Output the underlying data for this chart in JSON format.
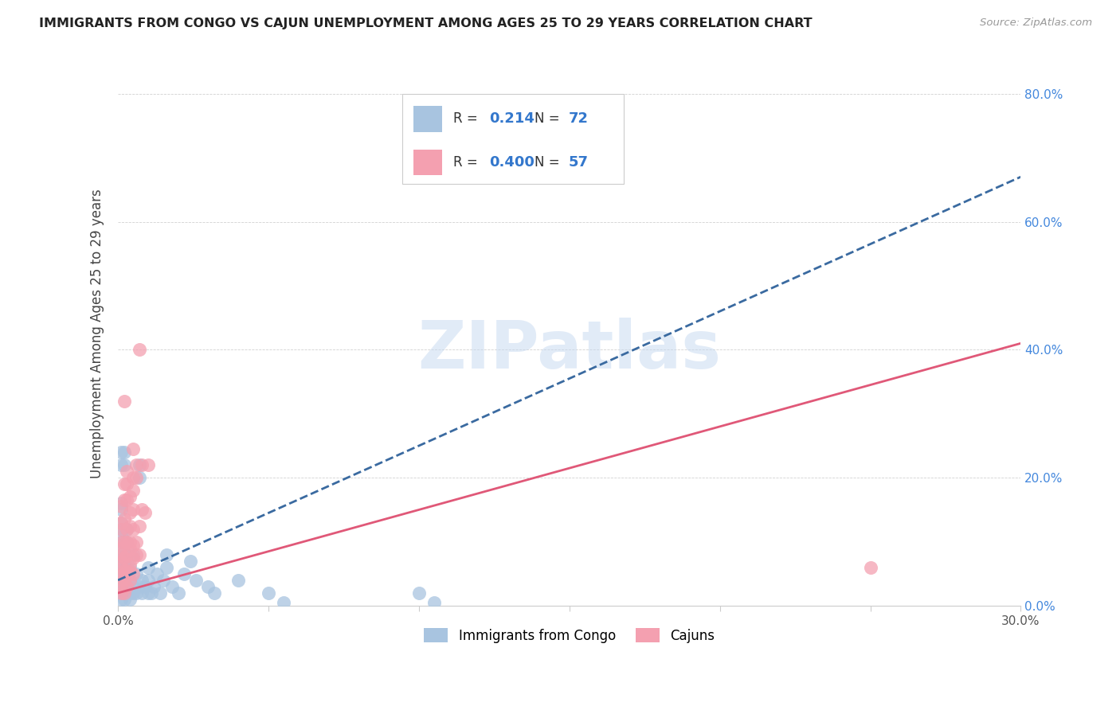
{
  "title": "IMMIGRANTS FROM CONGO VS CAJUN UNEMPLOYMENT AMONG AGES 25 TO 29 YEARS CORRELATION CHART",
  "source": "Source: ZipAtlas.com",
  "ylabel": "Unemployment Among Ages 25 to 29 years",
  "xlim": [
    0.0,
    0.3
  ],
  "ylim": [
    0.0,
    0.85
  ],
  "xticks": [
    0.0,
    0.05,
    0.1,
    0.15,
    0.2,
    0.25,
    0.3
  ],
  "xtick_labels": [
    "0.0%",
    "",
    "",
    "",
    "",
    "",
    "30.0%"
  ],
  "ytick_labels": [
    "0.0%",
    "20.0%",
    "40.0%",
    "60.0%",
    "80.0%"
  ],
  "yticks": [
    0.0,
    0.2,
    0.4,
    0.6,
    0.8
  ],
  "R_congo": 0.214,
  "N_congo": 72,
  "R_cajun": 0.4,
  "N_cajun": 57,
  "color_congo": "#a8c4e0",
  "color_cajun": "#f4a0b0",
  "trendline_congo_color": "#3a6aa0",
  "trendline_cajun_color": "#e05878",
  "watermark": "ZIPatlas",
  "background_color": "#ffffff",
  "congo_points": [
    [
      0.001,
      0.01
    ],
    [
      0.001,
      0.02
    ],
    [
      0.001,
      0.03
    ],
    [
      0.001,
      0.04
    ],
    [
      0.001,
      0.05
    ],
    [
      0.001,
      0.06
    ],
    [
      0.001,
      0.07
    ],
    [
      0.001,
      0.08
    ],
    [
      0.001,
      0.09
    ],
    [
      0.001,
      0.1
    ],
    [
      0.001,
      0.11
    ],
    [
      0.001,
      0.12
    ],
    [
      0.001,
      0.13
    ],
    [
      0.001,
      0.15
    ],
    [
      0.001,
      0.16
    ],
    [
      0.001,
      0.22
    ],
    [
      0.001,
      0.24
    ],
    [
      0.002,
      0.01
    ],
    [
      0.002,
      0.02
    ],
    [
      0.002,
      0.03
    ],
    [
      0.002,
      0.04
    ],
    [
      0.002,
      0.05
    ],
    [
      0.002,
      0.06
    ],
    [
      0.002,
      0.07
    ],
    [
      0.002,
      0.08
    ],
    [
      0.002,
      0.1
    ],
    [
      0.002,
      0.22
    ],
    [
      0.002,
      0.24
    ],
    [
      0.003,
      0.02
    ],
    [
      0.003,
      0.03
    ],
    [
      0.003,
      0.05
    ],
    [
      0.003,
      0.06
    ],
    [
      0.003,
      0.08
    ],
    [
      0.003,
      0.1
    ],
    [
      0.003,
      0.12
    ],
    [
      0.004,
      0.01
    ],
    [
      0.004,
      0.02
    ],
    [
      0.004,
      0.04
    ],
    [
      0.004,
      0.06
    ],
    [
      0.005,
      0.02
    ],
    [
      0.005,
      0.03
    ],
    [
      0.005,
      0.08
    ],
    [
      0.006,
      0.02
    ],
    [
      0.006,
      0.05
    ],
    [
      0.007,
      0.03
    ],
    [
      0.007,
      0.2
    ],
    [
      0.007,
      0.22
    ],
    [
      0.008,
      0.02
    ],
    [
      0.008,
      0.04
    ],
    [
      0.009,
      0.03
    ],
    [
      0.01,
      0.02
    ],
    [
      0.01,
      0.04
    ],
    [
      0.01,
      0.06
    ],
    [
      0.011,
      0.02
    ],
    [
      0.012,
      0.03
    ],
    [
      0.013,
      0.05
    ],
    [
      0.014,
      0.02
    ],
    [
      0.015,
      0.04
    ],
    [
      0.016,
      0.06
    ],
    [
      0.016,
      0.08
    ],
    [
      0.018,
      0.03
    ],
    [
      0.02,
      0.02
    ],
    [
      0.022,
      0.05
    ],
    [
      0.024,
      0.07
    ],
    [
      0.026,
      0.04
    ],
    [
      0.03,
      0.03
    ],
    [
      0.032,
      0.02
    ],
    [
      0.04,
      0.04
    ],
    [
      0.05,
      0.02
    ],
    [
      0.055,
      0.005
    ],
    [
      0.1,
      0.02
    ],
    [
      0.105,
      0.005
    ]
  ],
  "cajun_points": [
    [
      0.001,
      0.02
    ],
    [
      0.001,
      0.03
    ],
    [
      0.001,
      0.04
    ],
    [
      0.001,
      0.05
    ],
    [
      0.001,
      0.06
    ],
    [
      0.001,
      0.07
    ],
    [
      0.001,
      0.08
    ],
    [
      0.001,
      0.09
    ],
    [
      0.001,
      0.1
    ],
    [
      0.001,
      0.12
    ],
    [
      0.001,
      0.13
    ],
    [
      0.001,
      0.155
    ],
    [
      0.002,
      0.02
    ],
    [
      0.002,
      0.04
    ],
    [
      0.002,
      0.055
    ],
    [
      0.002,
      0.075
    ],
    [
      0.002,
      0.1
    ],
    [
      0.002,
      0.135
    ],
    [
      0.002,
      0.165
    ],
    [
      0.002,
      0.19
    ],
    [
      0.002,
      0.32
    ],
    [
      0.003,
      0.03
    ],
    [
      0.003,
      0.055
    ],
    [
      0.003,
      0.08
    ],
    [
      0.003,
      0.1
    ],
    [
      0.003,
      0.12
    ],
    [
      0.003,
      0.165
    ],
    [
      0.003,
      0.19
    ],
    [
      0.003,
      0.21
    ],
    [
      0.004,
      0.04
    ],
    [
      0.004,
      0.055
    ],
    [
      0.004,
      0.065
    ],
    [
      0.004,
      0.09
    ],
    [
      0.004,
      0.1
    ],
    [
      0.004,
      0.125
    ],
    [
      0.004,
      0.145
    ],
    [
      0.004,
      0.17
    ],
    [
      0.005,
      0.05
    ],
    [
      0.005,
      0.075
    ],
    [
      0.005,
      0.095
    ],
    [
      0.005,
      0.12
    ],
    [
      0.005,
      0.15
    ],
    [
      0.005,
      0.18
    ],
    [
      0.005,
      0.2
    ],
    [
      0.005,
      0.245
    ],
    [
      0.006,
      0.08
    ],
    [
      0.006,
      0.1
    ],
    [
      0.006,
      0.2
    ],
    [
      0.006,
      0.22
    ],
    [
      0.007,
      0.08
    ],
    [
      0.007,
      0.125
    ],
    [
      0.007,
      0.4
    ],
    [
      0.008,
      0.15
    ],
    [
      0.008,
      0.22
    ],
    [
      0.009,
      0.145
    ],
    [
      0.01,
      0.22
    ],
    [
      0.25,
      0.06
    ]
  ],
  "congo_trendline_points": [
    [
      0.0,
      0.04
    ],
    [
      0.3,
      0.67
    ]
  ],
  "cajun_trendline_points": [
    [
      0.0,
      0.02
    ],
    [
      0.3,
      0.41
    ]
  ]
}
